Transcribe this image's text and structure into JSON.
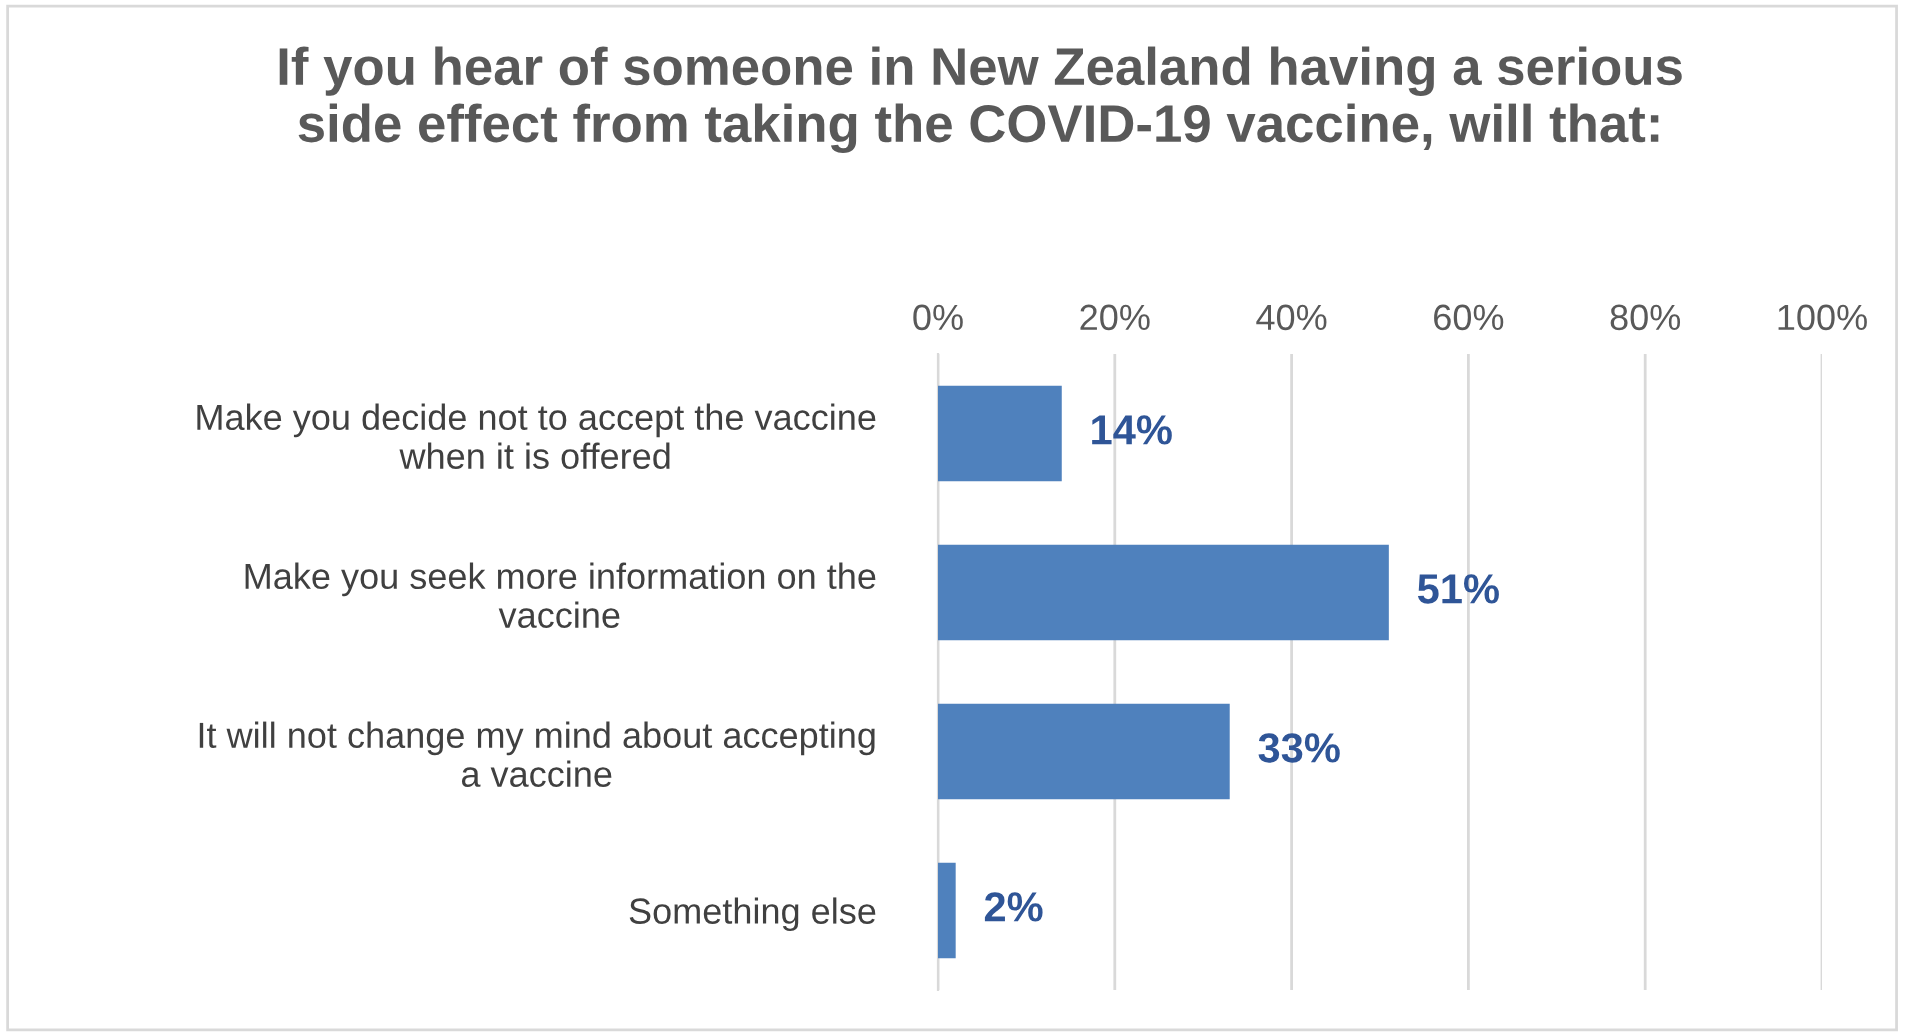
{
  "chart_data": {
    "type": "bar",
    "orientation": "horizontal",
    "title": "If you hear of someone in New Zealand having a serious\nside effect from taking the COVID-19 vaccine, will that:",
    "categories": [
      "Make you decide not to accept the vaccine\nwhen it is offered",
      "Make you seek more information on the\nvaccine",
      "It will not change my mind about accepting\na vaccine",
      "Something else"
    ],
    "values": [
      14,
      51,
      33,
      2
    ],
    "value_labels": [
      "14%",
      "51%",
      "33%",
      "2%"
    ],
    "color": "#4f81bd",
    "xlim": [
      0,
      100
    ],
    "xticks": [
      {
        "value": 0,
        "label": "0%"
      },
      {
        "value": 20,
        "label": "20%"
      },
      {
        "value": 40,
        "label": "40%"
      },
      {
        "value": 60,
        "label": "60%"
      },
      {
        "value": 80,
        "label": "80%"
      },
      {
        "value": 100,
        "label": "100%"
      }
    ],
    "grid": "x"
  }
}
